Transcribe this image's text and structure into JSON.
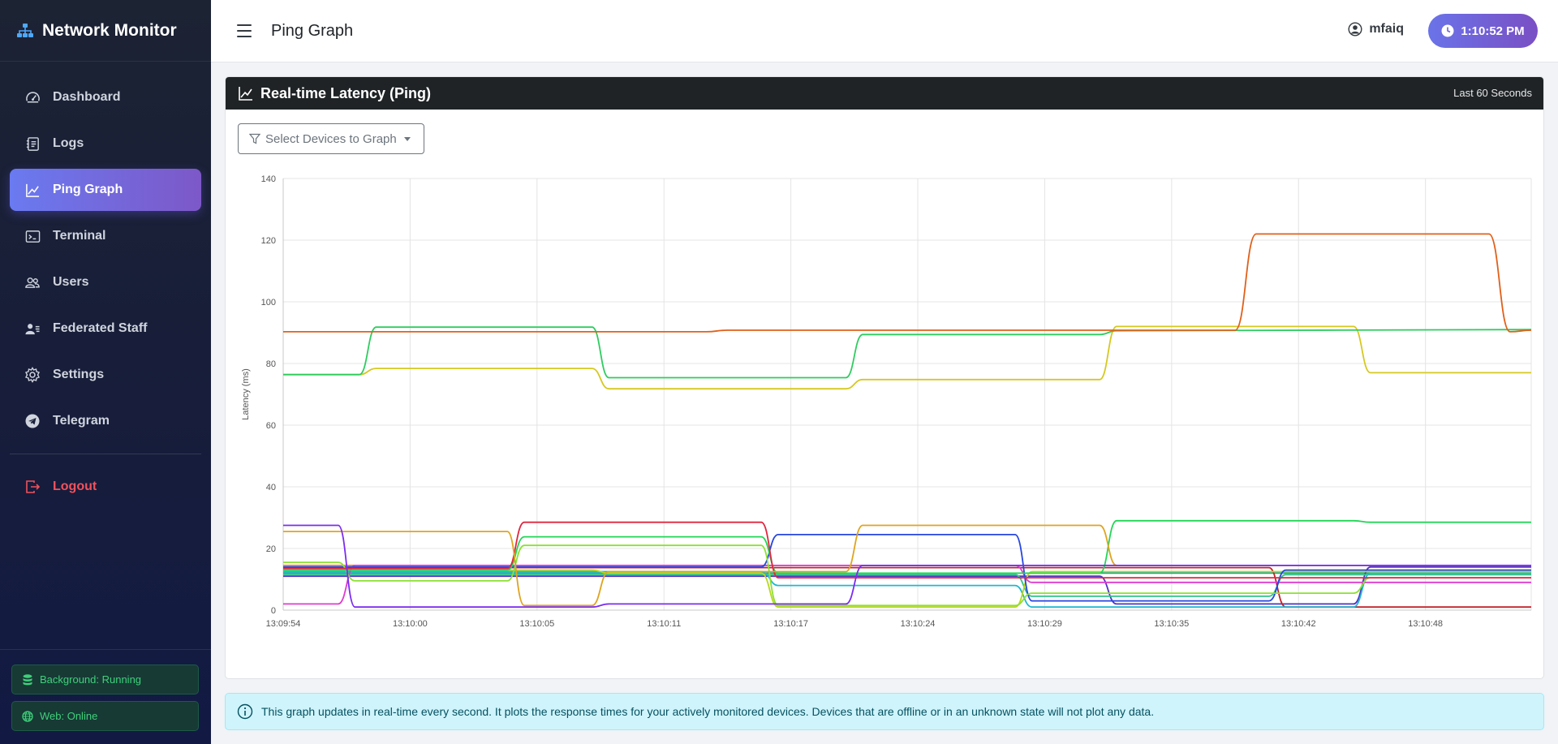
{
  "app": {
    "title": "Network Monitor"
  },
  "sidebar": {
    "items": [
      {
        "label": "Dashboard",
        "icon": "speedometer-icon",
        "active": false
      },
      {
        "label": "Logs",
        "icon": "journal-icon",
        "active": false
      },
      {
        "label": "Ping Graph",
        "icon": "graph-up-icon",
        "active": true
      },
      {
        "label": "Terminal",
        "icon": "terminal-icon",
        "active": false
      },
      {
        "label": "Users",
        "icon": "people-icon",
        "active": false
      },
      {
        "label": "Federated Staff",
        "icon": "person-vcard-icon",
        "active": false
      },
      {
        "label": "Settings",
        "icon": "gear-icon",
        "active": false
      },
      {
        "label": "Telegram",
        "icon": "telegram-icon",
        "active": false
      }
    ],
    "logout": "Logout",
    "status_background": "Background: Running",
    "status_web": "Web: Online"
  },
  "header": {
    "page_title": "Ping Graph",
    "username": "mfaiq",
    "clock": "1:10:52 PM"
  },
  "card": {
    "title": "Real-time Latency (Ping)",
    "subtitle": "Last 60 Seconds",
    "filter_label": "Select Devices to Graph"
  },
  "info": {
    "text": "This graph updates in real-time every second. It plots the response times for your actively monitored devices. Devices that are offline or in an unknown state will not plot any data."
  },
  "colors": {
    "accent_start": "#6a7af0",
    "accent_end": "#7d58c8",
    "logout": "#f0525c",
    "status_green": "#3fd07a"
  },
  "chart_data": {
    "type": "line",
    "title": "",
    "xlabel": "",
    "ylabel": "Latency (ms)",
    "ylim": [
      0,
      140
    ],
    "yticks": [
      0,
      20,
      40,
      60,
      80,
      100,
      120,
      140
    ],
    "xlim": [
      0,
      59
    ],
    "xtick_positions": [
      0,
      6,
      12,
      18,
      24,
      30,
      36,
      42,
      48,
      54
    ],
    "xtick_labels": [
      "13:09:54",
      "13:10:00",
      "13:10:05",
      "13:10:11",
      "13:10:17",
      "13:10:24",
      "13:10:29",
      "13:10:35",
      "13:10:42",
      "13:10:48"
    ],
    "grid": true,
    "legend": "none",
    "series": [
      {
        "color": "#e0601a",
        "values": [
          [
            0,
            90.3
          ],
          [
            20,
            90.3
          ],
          [
            21,
            90.8
          ],
          [
            45,
            90.8
          ],
          [
            46,
            122
          ],
          [
            57,
            122
          ],
          [
            58,
            90.3
          ],
          [
            59,
            90.8
          ]
        ]
      },
      {
        "color": "#2ecc5f",
        "values": [
          [
            0,
            76.4
          ],
          [
            3.6,
            76.4
          ],
          [
            4.4,
            91.8
          ],
          [
            14.6,
            91.8
          ],
          [
            15.4,
            75.4
          ],
          [
            26.6,
            75.4
          ],
          [
            27.4,
            89.4
          ],
          [
            38.6,
            89.4
          ],
          [
            39.4,
            90.6
          ],
          [
            59,
            91
          ]
        ]
      },
      {
        "color": "#d6c820",
        "values": [
          [
            0,
            76.4
          ],
          [
            3.6,
            76.4
          ],
          [
            4.4,
            78.4
          ],
          [
            14.6,
            78.4
          ],
          [
            15.4,
            71.8
          ],
          [
            26.6,
            71.8
          ],
          [
            27.4,
            74.8
          ],
          [
            38.6,
            74.8
          ],
          [
            39.4,
            92
          ],
          [
            50.6,
            92
          ],
          [
            51.4,
            77
          ],
          [
            59,
            77
          ]
        ]
      },
      {
        "color": "#7b2cf0",
        "values": [
          [
            0,
            27.5
          ],
          [
            2.6,
            27.5
          ],
          [
            3.4,
            1
          ],
          [
            14.6,
            1
          ],
          [
            15.4,
            2
          ],
          [
            26.6,
            2
          ],
          [
            27.4,
            14.5
          ],
          [
            59,
            14.5
          ]
        ]
      },
      {
        "color": "#dfa41f",
        "values": [
          [
            0,
            25.5
          ],
          [
            10.6,
            25.5
          ],
          [
            11.4,
            1.5
          ],
          [
            14.6,
            1.5
          ],
          [
            15.4,
            12.5
          ],
          [
            26.6,
            12.5
          ],
          [
            27.4,
            27.5
          ],
          [
            38.6,
            27.5
          ],
          [
            39.4,
            14.5
          ],
          [
            59,
            14.5
          ]
        ]
      },
      {
        "color": "#e0263f",
        "values": [
          [
            0,
            13.5
          ],
          [
            10.6,
            13.5
          ],
          [
            11.4,
            28.5
          ],
          [
            22.6,
            28.5
          ],
          [
            23.4,
            10.5
          ],
          [
            59,
            10.5
          ]
        ]
      },
      {
        "color": "#22d655",
        "values": [
          [
            0,
            13
          ],
          [
            10.6,
            13
          ],
          [
            11.4,
            23.8
          ],
          [
            22.6,
            23.8
          ],
          [
            23.4,
            12
          ],
          [
            38.6,
            12
          ],
          [
            39.4,
            29
          ],
          [
            50.6,
            29
          ],
          [
            51.4,
            28.5
          ],
          [
            59,
            28.5
          ]
        ]
      },
      {
        "color": "#8de034",
        "values": [
          [
            0,
            15.5
          ],
          [
            2.6,
            15.5
          ],
          [
            3.4,
            9.5
          ],
          [
            10.6,
            9.5
          ],
          [
            11.4,
            21
          ],
          [
            22.6,
            21
          ],
          [
            23.4,
            1.5
          ],
          [
            34.6,
            1.5
          ],
          [
            35.4,
            5.5
          ],
          [
            50.6,
            5.5
          ],
          [
            51.4,
            10.5
          ],
          [
            59,
            10.5
          ]
        ]
      },
      {
        "color": "#2646e0",
        "values": [
          [
            0,
            14
          ],
          [
            22.6,
            14
          ],
          [
            23.4,
            24.5
          ],
          [
            34.6,
            24.5
          ],
          [
            35.4,
            3
          ],
          [
            46.6,
            3
          ],
          [
            47.4,
            13
          ],
          [
            59,
            13
          ]
        ]
      },
      {
        "color": "#e03ad0",
        "values": [
          [
            0,
            2
          ],
          [
            2.6,
            2
          ],
          [
            3.4,
            14.5
          ],
          [
            34.6,
            14.5
          ],
          [
            35.4,
            9
          ],
          [
            59,
            9
          ]
        ]
      },
      {
        "color": "#b8d81a",
        "values": [
          [
            0,
            13
          ],
          [
            14.6,
            13
          ],
          [
            15.4,
            12
          ],
          [
            22.6,
            12
          ],
          [
            23.4,
            1
          ],
          [
            34.6,
            1
          ],
          [
            35.4,
            12.5
          ],
          [
            59,
            12.5
          ]
        ]
      },
      {
        "color": "#1fb8d0",
        "values": [
          [
            0,
            12.5
          ],
          [
            22.6,
            12.5
          ],
          [
            23.4,
            8
          ],
          [
            34.6,
            8
          ],
          [
            35.4,
            1
          ],
          [
            50.6,
            1
          ],
          [
            51.4,
            12
          ],
          [
            59,
            12
          ]
        ]
      },
      {
        "color": "#2ec48a",
        "values": [
          [
            0,
            11.5
          ],
          [
            34.6,
            11.5
          ],
          [
            35.4,
            4.5
          ],
          [
            46.6,
            4.5
          ],
          [
            47.4,
            11.5
          ],
          [
            59,
            11.5
          ]
        ]
      },
      {
        "color": "#c0242c",
        "values": [
          [
            0,
            13.8
          ],
          [
            46.6,
            13.8
          ],
          [
            47.4,
            1
          ],
          [
            59,
            1
          ]
        ]
      },
      {
        "color": "#5030c8",
        "values": [
          [
            0,
            11
          ],
          [
            38.6,
            11
          ],
          [
            39.4,
            2
          ],
          [
            50.6,
            2
          ],
          [
            51.4,
            14
          ],
          [
            59,
            14
          ]
        ]
      },
      {
        "color": "#14a8a0",
        "values": [
          [
            0,
            12
          ],
          [
            59,
            12
          ]
        ]
      },
      {
        "color": "#f07e2c",
        "values": [
          [
            0,
            14.5
          ],
          [
            59,
            14.5
          ]
        ]
      }
    ]
  }
}
